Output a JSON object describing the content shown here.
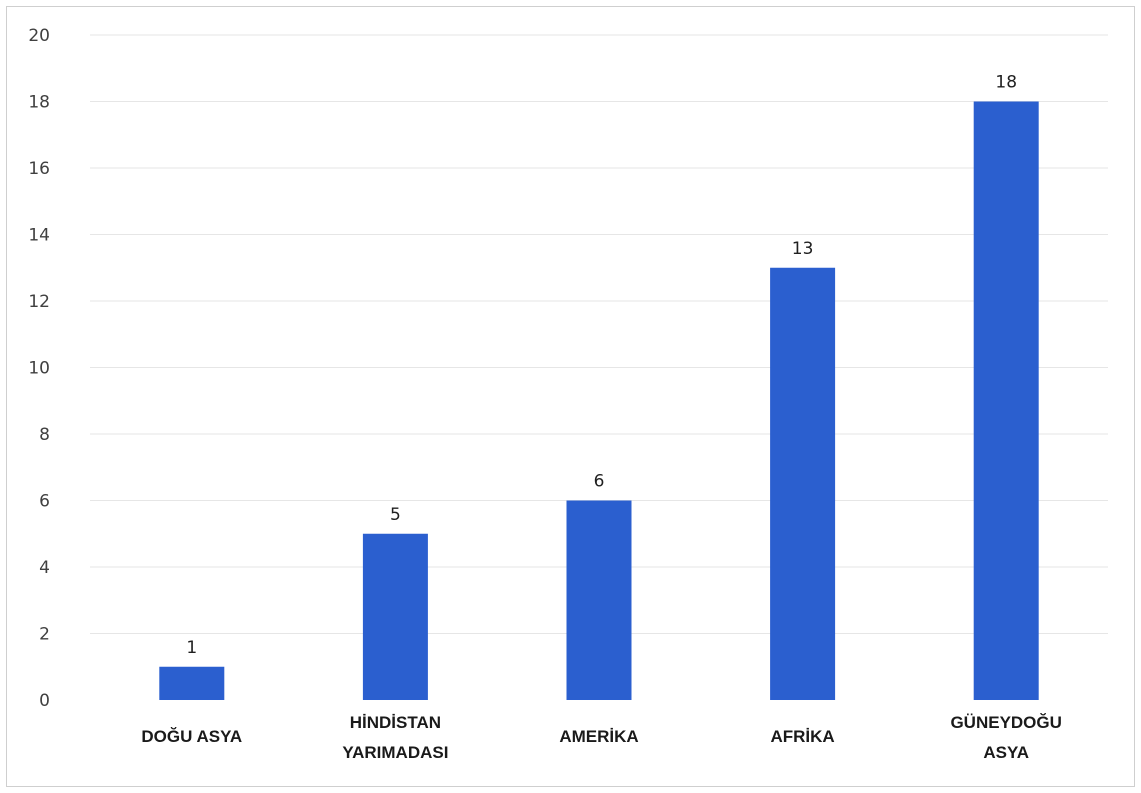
{
  "chart_data": {
    "type": "bar",
    "categories": [
      [
        "DOĞU ASYA"
      ],
      [
        "HİNDİSTAN",
        "YARIMADASI"
      ],
      [
        "AMERİKA"
      ],
      [
        "AFRİKA"
      ],
      [
        "GÜNEYDOĞU",
        "ASYA"
      ]
    ],
    "values": [
      1,
      5,
      6,
      13,
      18
    ],
    "data_labels": [
      "1",
      "5",
      "6",
      "13",
      "18"
    ],
    "yticks": [
      "0",
      "2",
      "4",
      "6",
      "8",
      "10",
      "12",
      "14",
      "16",
      "18",
      "20"
    ],
    "ylim": [
      0,
      20
    ],
    "grid": true,
    "bar_color": "#2b5fcf",
    "title": "",
    "xlabel": "",
    "ylabel": ""
  }
}
